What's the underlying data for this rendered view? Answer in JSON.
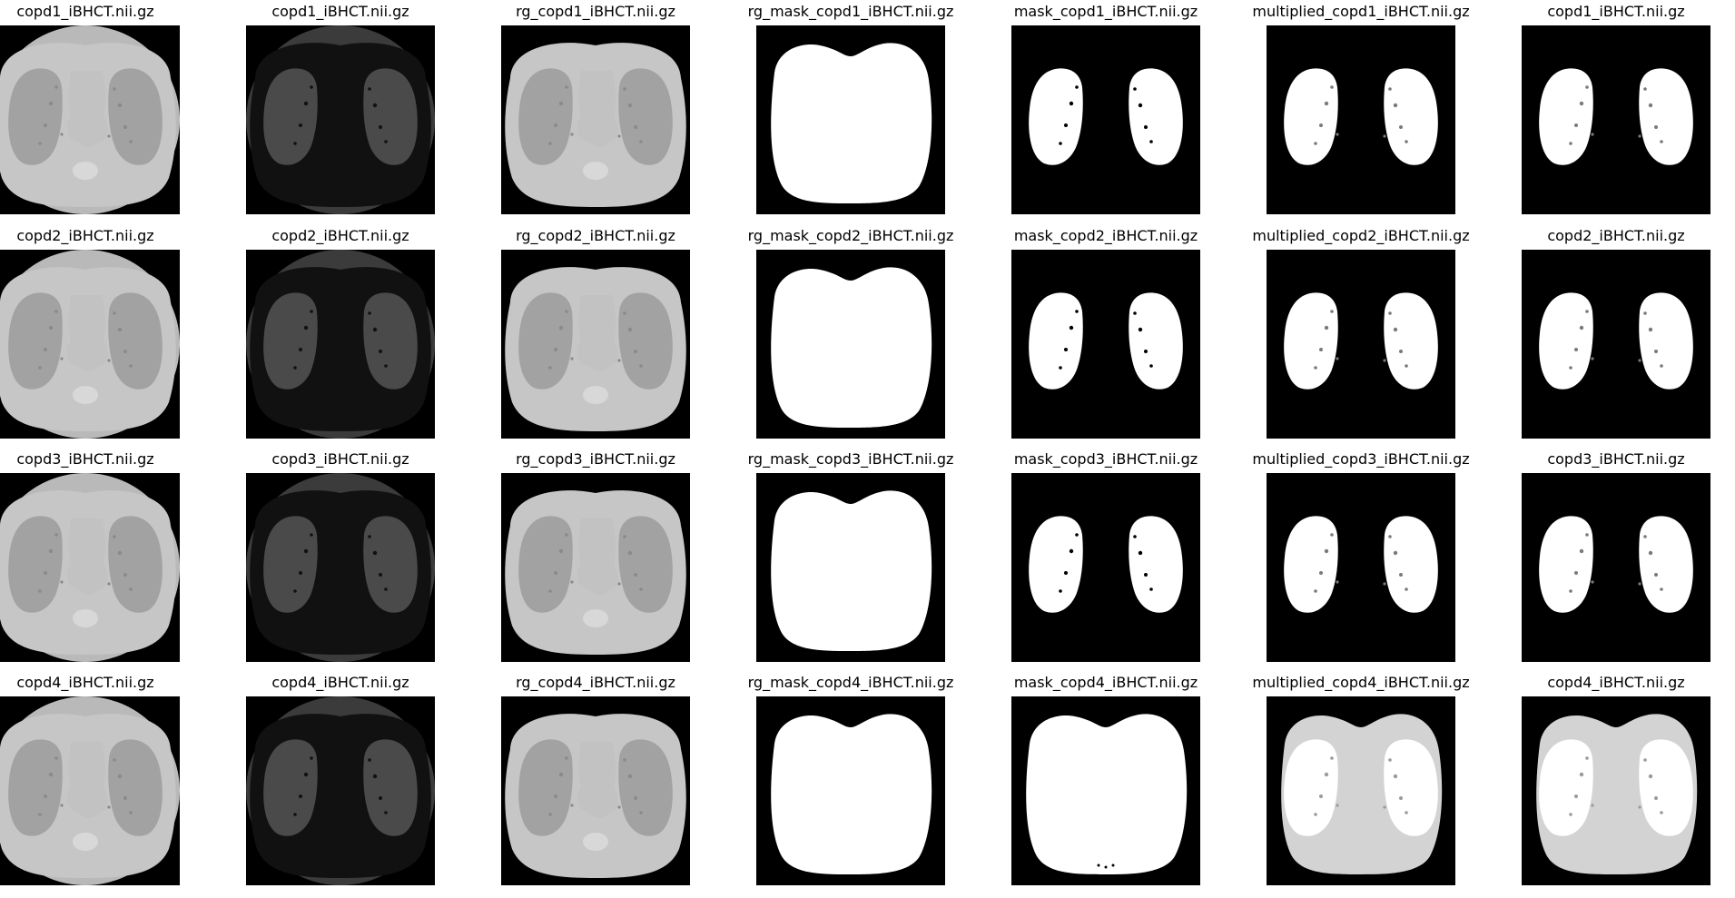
{
  "figure": {
    "rows": [
      {
        "case": "copd1",
        "panels": [
          {
            "title": "copd1_iBHCT.nii.gz",
            "kind": "ct_raw"
          },
          {
            "title": "copd1_iBHCT.nii.gz",
            "kind": "threshold"
          },
          {
            "title": "rg_copd1_iBHCT.nii.gz",
            "kind": "ct_rg"
          },
          {
            "title": "rg_mask_copd1_iBHCT.nii.gz",
            "kind": "rg_mask"
          },
          {
            "title": "mask_copd1_iBHCT.nii.gz",
            "kind": "lung_mask"
          },
          {
            "title": "multiplied_copd1_iBHCT.nii.gz",
            "kind": "multiplied"
          },
          {
            "title": "copd1_iBHCT.nii.gz",
            "kind": "final"
          }
        ]
      },
      {
        "case": "copd2",
        "panels": [
          {
            "title": "copd2_iBHCT.nii.gz",
            "kind": "ct_raw"
          },
          {
            "title": "copd2_iBHCT.nii.gz",
            "kind": "threshold"
          },
          {
            "title": "rg_copd2_iBHCT.nii.gz",
            "kind": "ct_rg"
          },
          {
            "title": "rg_mask_copd2_iBHCT.nii.gz",
            "kind": "rg_mask"
          },
          {
            "title": "mask_copd2_iBHCT.nii.gz",
            "kind": "lung_mask"
          },
          {
            "title": "multiplied_copd2_iBHCT.nii.gz",
            "kind": "multiplied"
          },
          {
            "title": "copd2_iBHCT.nii.gz",
            "kind": "final"
          }
        ]
      },
      {
        "case": "copd3",
        "panels": [
          {
            "title": "copd3_iBHCT.nii.gz",
            "kind": "ct_raw"
          },
          {
            "title": "copd3_iBHCT.nii.gz",
            "kind": "threshold"
          },
          {
            "title": "rg_copd3_iBHCT.nii.gz",
            "kind": "ct_rg"
          },
          {
            "title": "rg_mask_copd3_iBHCT.nii.gz",
            "kind": "rg_mask"
          },
          {
            "title": "mask_copd3_iBHCT.nii.gz",
            "kind": "lung_mask"
          },
          {
            "title": "multiplied_copd3_iBHCT.nii.gz",
            "kind": "multiplied"
          },
          {
            "title": "copd3_iBHCT.nii.gz",
            "kind": "final"
          }
        ]
      },
      {
        "case": "copd4",
        "panels": [
          {
            "title": "copd4_iBHCT.nii.gz",
            "kind": "ct_raw"
          },
          {
            "title": "copd4_iBHCT.nii.gz",
            "kind": "threshold"
          },
          {
            "title": "rg_copd4_iBHCT.nii.gz",
            "kind": "ct_rg"
          },
          {
            "title": "rg_mask_copd4_iBHCT.nii.gz",
            "kind": "rg_mask"
          },
          {
            "title": "mask_copd4_iBHCT.nii.gz",
            "kind": "lung_mask_full"
          },
          {
            "title": "multiplied_copd4_iBHCT.nii.gz",
            "kind": "multiplied_gray"
          },
          {
            "title": "copd4_iBHCT.nii.gz",
            "kind": "final_gray"
          }
        ]
      }
    ]
  },
  "colors": {
    "background": "#000000",
    "ct_outer": "#b9b9b9",
    "ct_body": "#c6c6c6",
    "ct_lung": "#a2a2a2",
    "ct_mediastinum": "#c2c2c2",
    "threshold_rim": "#3b3b3b",
    "threshold_lung": "#4a4a4a",
    "mask_white": "#ffffff",
    "masked_gray": "#d3d3d3"
  }
}
